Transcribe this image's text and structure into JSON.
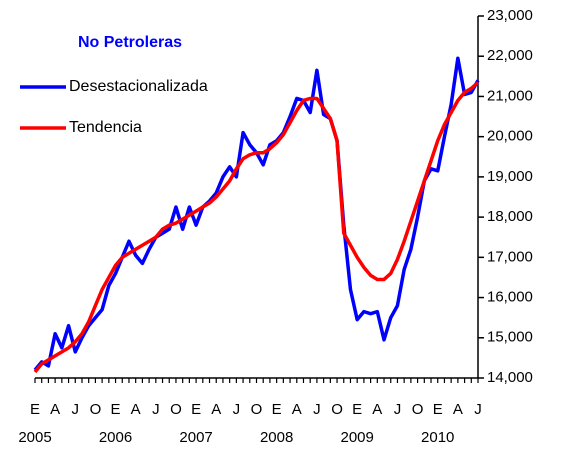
{
  "chart_data": {
    "type": "line",
    "title": "No Petroleras",
    "categories": [
      "E",
      null,
      null,
      "A",
      null,
      null,
      "J",
      null,
      null,
      "O",
      null,
      null,
      "E",
      null,
      null,
      "A",
      null,
      null,
      "J",
      null,
      null,
      "O",
      null,
      null,
      "E",
      null,
      null,
      "A",
      null,
      null,
      "J",
      null,
      null,
      "O",
      null,
      null,
      "E",
      null,
      null,
      "A",
      null,
      null,
      "J",
      null,
      null,
      "O",
      null,
      null,
      "E",
      null,
      null,
      "A",
      null,
      null,
      "J",
      null,
      null,
      "O",
      null,
      null,
      "E",
      null,
      null,
      "A",
      null,
      null,
      "J"
    ],
    "years": [
      "2005",
      "2006",
      "2007",
      "2008",
      "2009",
      "2010"
    ],
    "series": [
      {
        "name": "Desestacionalizada",
        "color": "#0000ff",
        "values": [
          14200,
          14400,
          14300,
          15100,
          14750,
          15300,
          14650,
          15000,
          15300,
          15500,
          15700,
          16300,
          16600,
          17000,
          17400,
          17050,
          16850,
          17200,
          17500,
          17600,
          17700,
          18250,
          17700,
          18250,
          17800,
          18250,
          18400,
          18600,
          19000,
          19250,
          19000,
          20100,
          19800,
          19600,
          19300,
          19800,
          19900,
          20100,
          20500,
          20950,
          20900,
          20600,
          21650,
          20550,
          20450,
          19900,
          17800,
          16200,
          15450,
          15650,
          15600,
          15650,
          14950,
          15500,
          15800,
          16700,
          17200,
          18000,
          18900,
          19200,
          19150,
          20000,
          20800,
          21950,
          21050,
          21100,
          21400
        ]
      },
      {
        "name": "Tendencia",
        "color": "#ff0000",
        "values": [
          14150,
          14350,
          14450,
          14550,
          14650,
          14750,
          14900,
          15100,
          15400,
          15800,
          16200,
          16500,
          16800,
          17000,
          17100,
          17200,
          17300,
          17400,
          17500,
          17700,
          17800,
          17850,
          17950,
          18050,
          18150,
          18250,
          18350,
          18500,
          18700,
          18900,
          19200,
          19450,
          19550,
          19600,
          19600,
          19700,
          19850,
          20050,
          20350,
          20650,
          20900,
          20950,
          20950,
          20700,
          20450,
          19900,
          17600,
          17300,
          17000,
          16750,
          16550,
          16450,
          16450,
          16600,
          16950,
          17400,
          17900,
          18400,
          18900,
          19400,
          19900,
          20300,
          20600,
          20900,
          21100,
          21200,
          21350
        ]
      }
    ],
    "ylim": [
      14000,
      23000
    ],
    "yticks": [
      {
        "value": 14000,
        "label": "14,000"
      },
      {
        "value": 15000,
        "label": "15,000"
      },
      {
        "value": 16000,
        "label": "16,000"
      },
      {
        "value": 17000,
        "label": "17,000"
      },
      {
        "value": 18000,
        "label": "18,000"
      },
      {
        "value": 19000,
        "label": "19,000"
      },
      {
        "value": 20000,
        "label": "20,000"
      },
      {
        "value": 21000,
        "label": "21,000"
      },
      {
        "value": 22000,
        "label": "22,000"
      },
      {
        "value": 23000,
        "label": "23,000"
      }
    ],
    "grid": false
  }
}
